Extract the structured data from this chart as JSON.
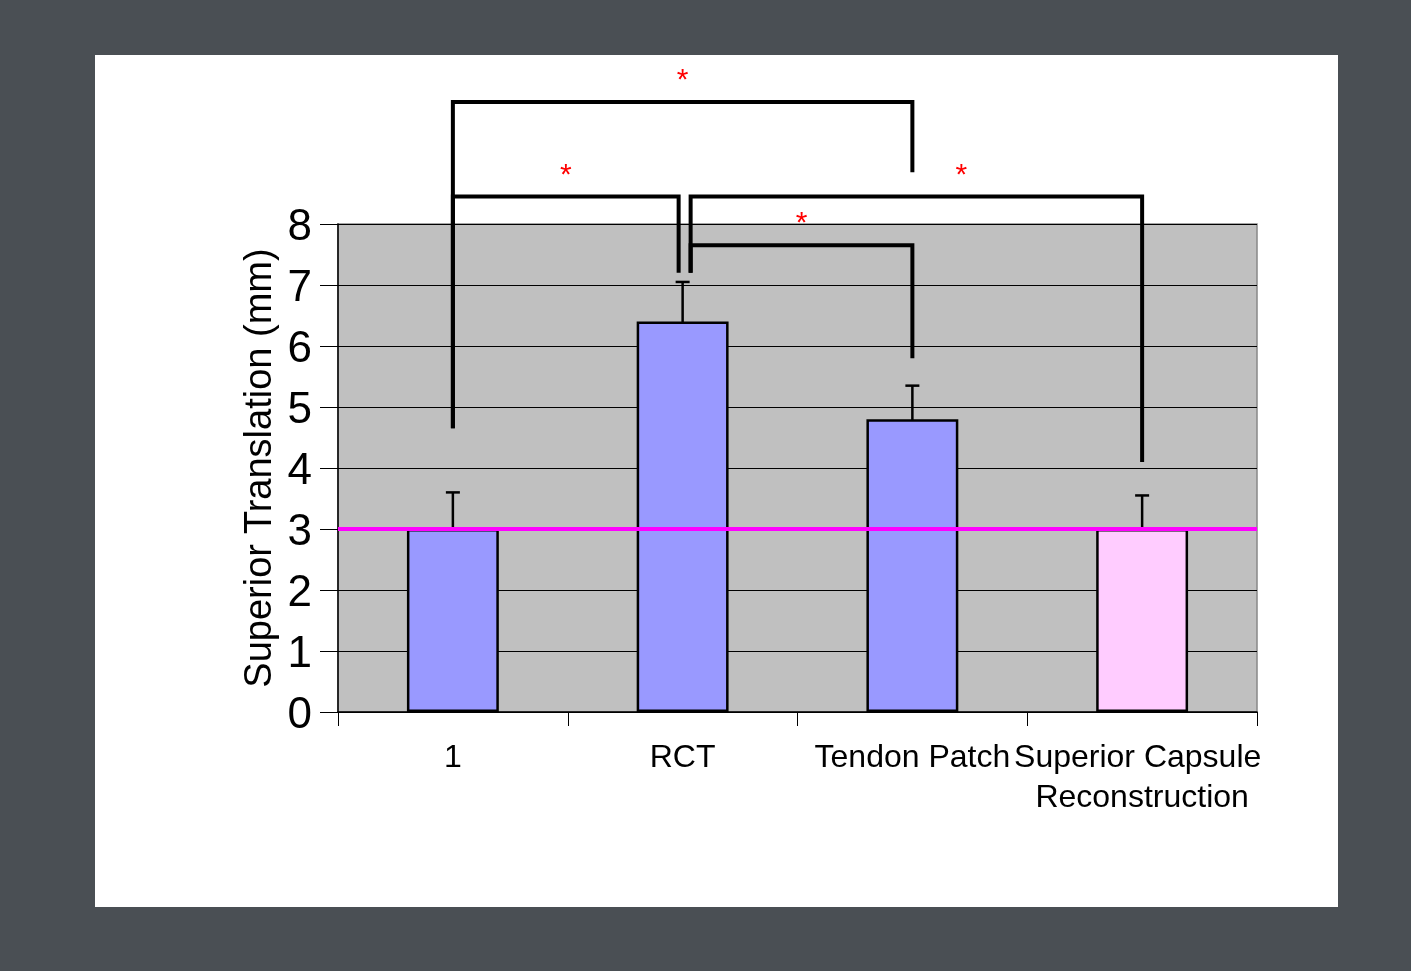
{
  "chart_data": {
    "type": "bar",
    "ylabel": "Superior Translation (mm)",
    "categories": [
      "1",
      "RCT",
      "Tendon Patch",
      "Superior Capsule Reconstruction"
    ],
    "values": [
      3.0,
      6.4,
      4.8,
      3.0
    ],
    "errors": [
      0.6,
      0.65,
      0.55,
      0.55
    ],
    "colors": [
      "#9999ff",
      "#9999ff",
      "#9999ff",
      "#ffccff"
    ],
    "ylim": [
      0,
      8
    ],
    "yticks": [
      0,
      1,
      2,
      3,
      4,
      5,
      6,
      7,
      8
    ],
    "grid": "y",
    "ref_lines": [
      {
        "axis": "y",
        "value": 3,
        "color": "#ff00ff",
        "line_style": "solid"
      }
    ],
    "annotations": [
      "*",
      "*",
      "*",
      "*"
    ]
  }
}
